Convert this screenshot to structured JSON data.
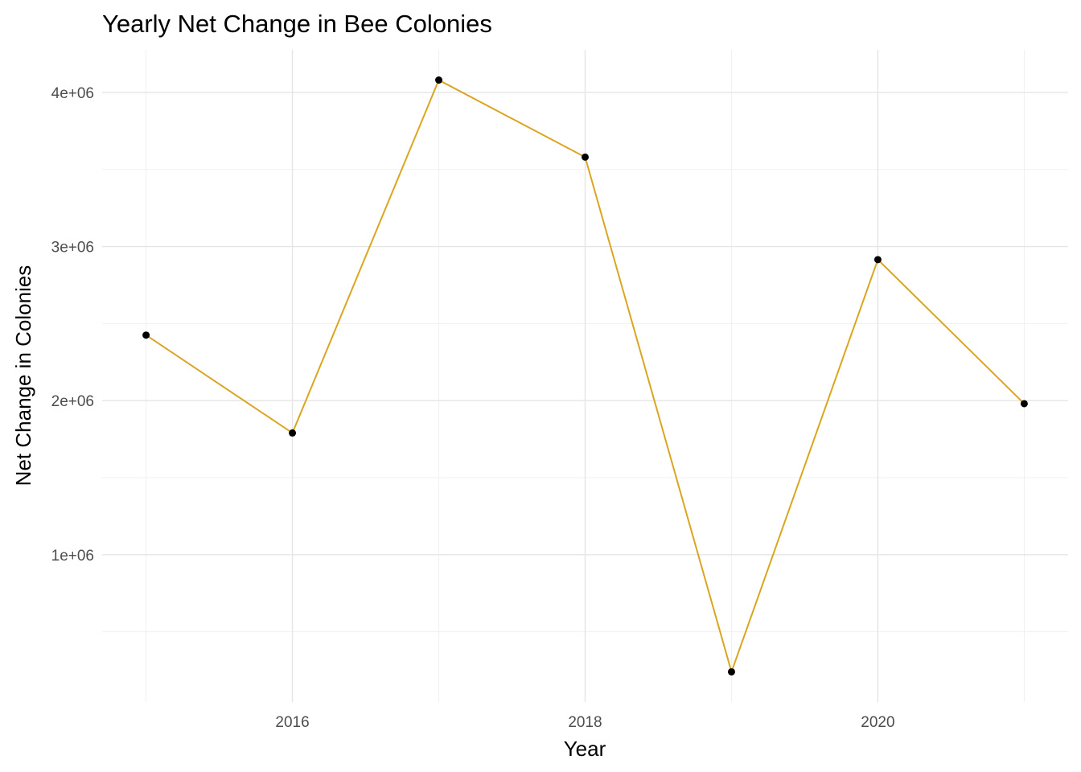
{
  "chart_data": {
    "type": "line",
    "title": "Yearly Net Change in Bee Colonies",
    "xlabel": "Year",
    "ylabel": "Net Change in Colonies",
    "x": [
      2015,
      2016,
      2017,
      2018,
      2019,
      2020,
      2021
    ],
    "series": [
      {
        "values": [
          2425000,
          1790000,
          4080000,
          3580000,
          240000,
          2915000,
          1980000
        ],
        "color": "#DAA520",
        "marker_color": "#000000"
      }
    ],
    "x_ticks": [
      2016,
      2018,
      2020
    ],
    "x_tick_labels": [
      "2016",
      "2018",
      "2020"
    ],
    "y_ticks": [
      1000000,
      2000000,
      3000000,
      4000000
    ],
    "y_tick_labels": [
      "1e+06",
      "2e+06",
      "3e+06",
      "4e+06"
    ],
    "xlim": [
      2014.7,
      2021.3
    ],
    "ylim": [
      44000,
      4276000
    ],
    "grid": true,
    "legend": "none"
  }
}
